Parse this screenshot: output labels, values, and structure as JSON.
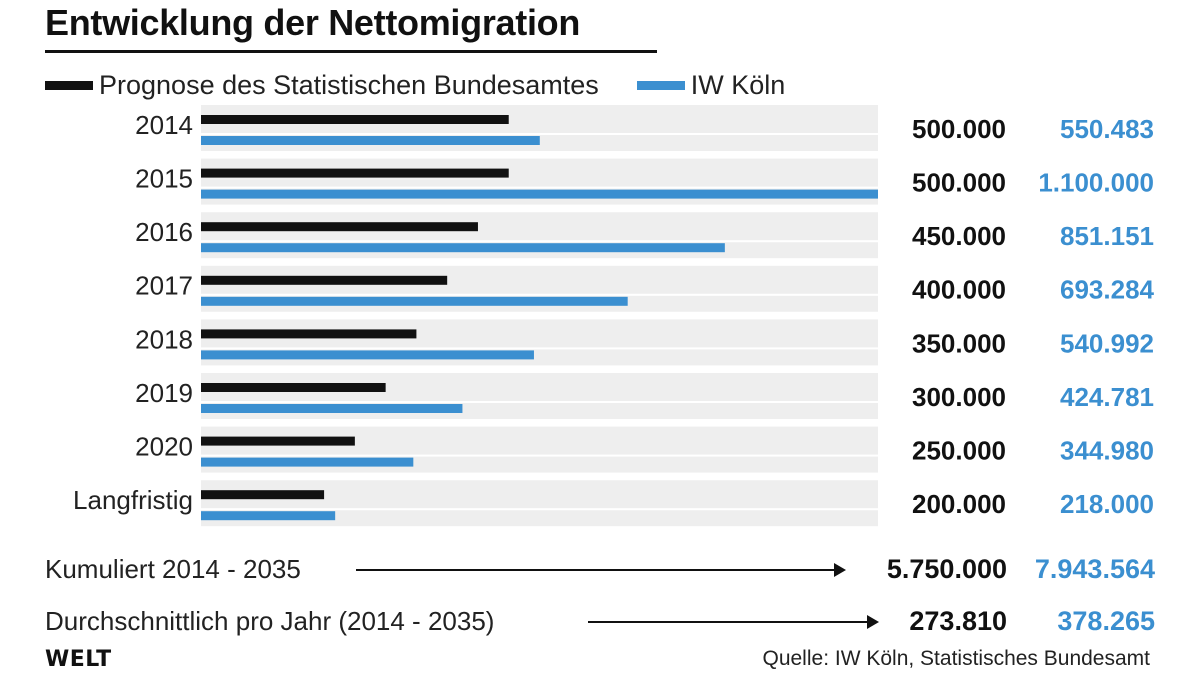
{
  "chart_data": {
    "type": "bar",
    "title": "Entwicklung der Nettomigration",
    "categories": [
      "2014",
      "2015",
      "2016",
      "2017",
      "2018",
      "2019",
      "2020",
      "Langfristig"
    ],
    "series": [
      {
        "name": "Prognose des Statistischen Bundesamtes",
        "color": "#111111",
        "values": [
          500000,
          500000,
          450000,
          400000,
          350000,
          300000,
          250000,
          200000
        ],
        "labels": [
          "500.000",
          "500.000",
          "450.000",
          "400.000",
          "350.000",
          "300.000",
          "250.000",
          "200.000"
        ]
      },
      {
        "name": "IW Köln",
        "color": "#3b8fd0",
        "values": [
          550483,
          1100000,
          851151,
          693284,
          540992,
          424781,
          344980,
          218000
        ],
        "labels": [
          "550.483",
          "1.100.000",
          "851.151",
          "693.284",
          "540.992",
          "424.781",
          "344.980",
          "218.000"
        ]
      }
    ],
    "xlim": [
      0,
      1100000
    ],
    "xlabel": "",
    "ylabel": "",
    "orientation": "horizontal",
    "legend": "top-left",
    "grid": false
  },
  "summary": [
    {
      "label": "Kumuliert 2014 - 2035",
      "destatis": "5.750.000",
      "iw": "7.943.564"
    },
    {
      "label": "Durchschnittlich pro Jahr (2014 - 2035)",
      "destatis": "273.810",
      "iw": "378.265"
    }
  ],
  "footer": {
    "logo": "WELT",
    "source": "Quelle: IW Köln, Statistisches Bundesamt"
  },
  "colors": {
    "row_background": "#eeeeee",
    "destatis": "#111111",
    "iw": "#3b8fd0"
  }
}
